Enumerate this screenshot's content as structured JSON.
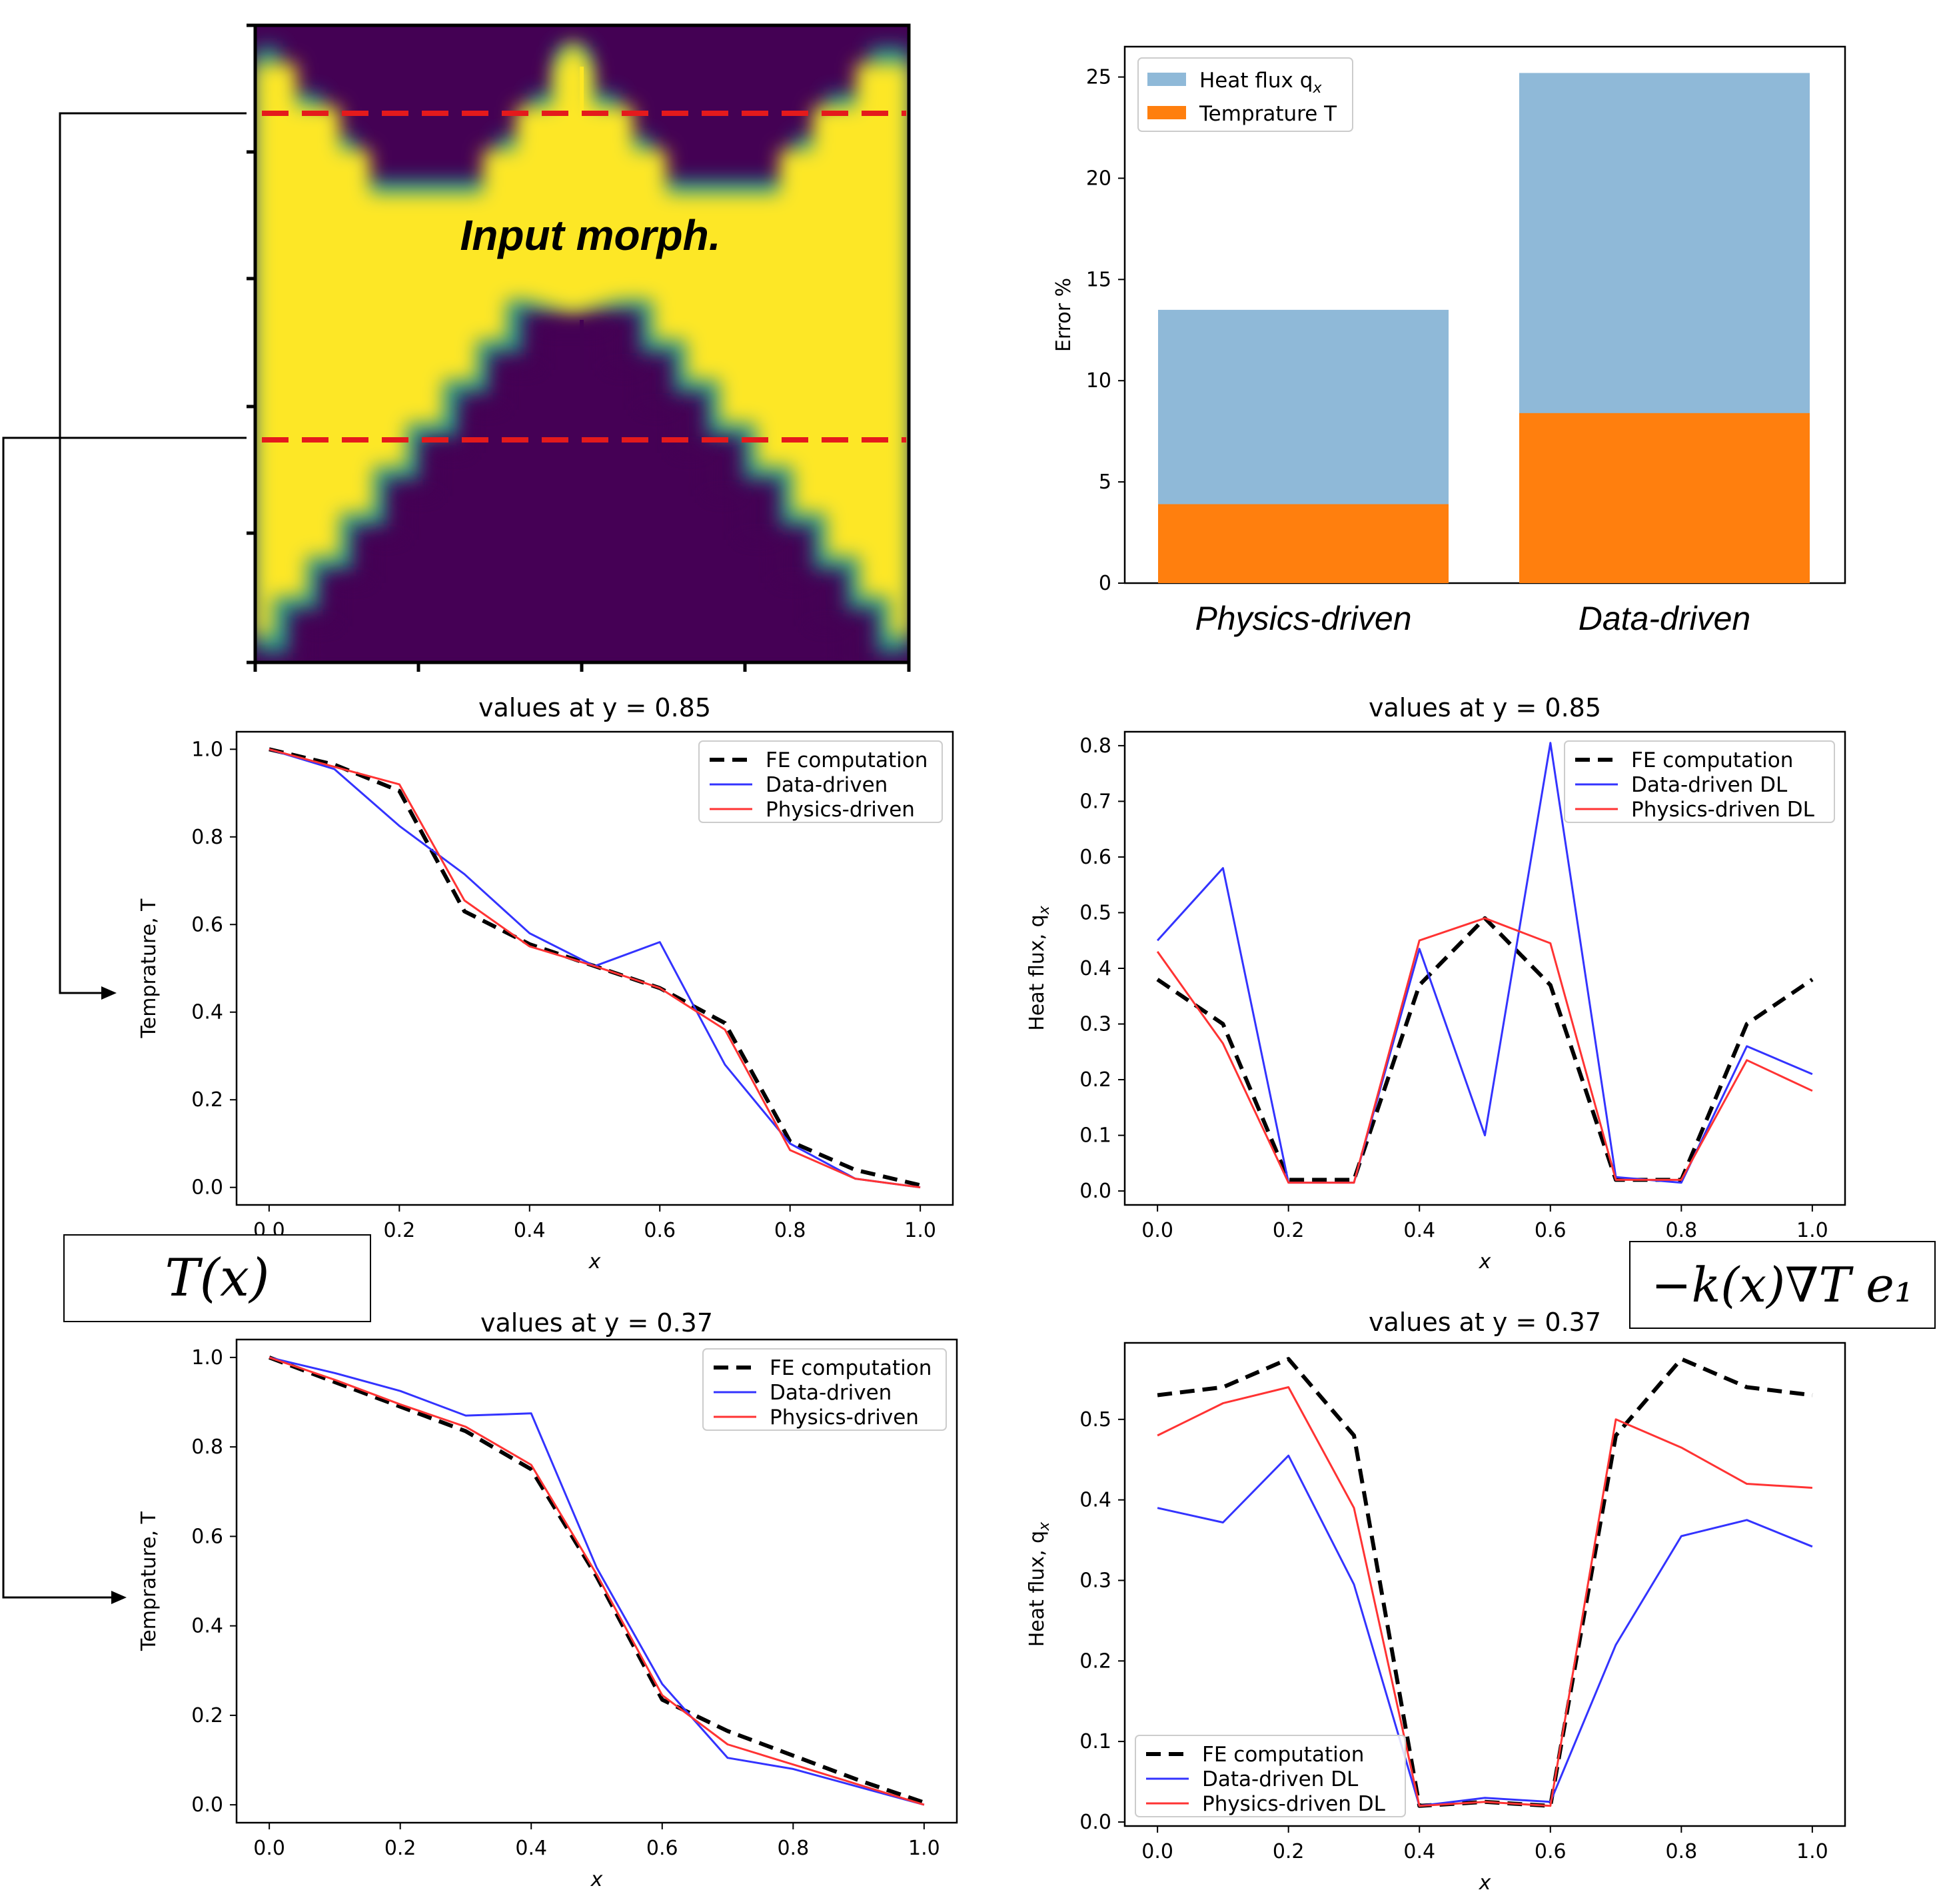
{
  "morph_panel": {
    "label": "Input morph.",
    "colors": {
      "dark": "#440154",
      "teal": "#21918c",
      "yellow": "#fde725",
      "cut": "#e41a1c"
    }
  },
  "formula_boxes": {
    "temperature": "T(x)",
    "flux": "−k(x)∇T e₁"
  },
  "colors": {
    "fe": "#000000",
    "data": "#3333ff",
    "phys": "#ff3333",
    "bar_flux": "#8fb9d8",
    "bar_temp": "#ff7f0e"
  },
  "chart_data": [
    {
      "id": "error-bar",
      "type": "bar",
      "title": "",
      "ylabel": "Error %",
      "ylim": [
        0,
        26.5
      ],
      "yticks": [
        0,
        5,
        10,
        15,
        20,
        25
      ],
      "categories": [
        "Physics-driven",
        "Data-driven"
      ],
      "series": [
        {
          "name": "Heat flux q",
          "sub": "x",
          "values": [
            13.5,
            25.2
          ]
        },
        {
          "name": "Temprature T",
          "values": [
            3.9,
            8.4
          ]
        }
      ]
    },
    {
      "id": "temp-085",
      "type": "line",
      "title": "values at y = 0.85",
      "xlabel": "x",
      "ylabel": "Temprature, T",
      "xlim": [
        -0.05,
        1.05
      ],
      "ylim": [
        -0.04,
        1.04
      ],
      "xticks": [
        "0.0",
        "0.2",
        "0.4",
        "0.6",
        "0.8",
        "1.0"
      ],
      "yticks": [
        "0.0",
        "0.2",
        "0.4",
        "0.6",
        "0.8",
        "1.0"
      ],
      "x": [
        0,
        0.1,
        0.2,
        0.3,
        0.4,
        0.5,
        0.6,
        0.7,
        0.8,
        0.9,
        1.0
      ],
      "series": [
        {
          "name": "FE computation",
          "values": [
            1.0,
            0.965,
            0.905,
            0.63,
            0.555,
            0.505,
            0.455,
            0.375,
            0.105,
            0.04,
            0.005
          ]
        },
        {
          "name": "Data-driven",
          "values": [
            1.0,
            0.955,
            0.825,
            0.715,
            0.58,
            0.505,
            0.56,
            0.28,
            0.1,
            0.02,
            0.0
          ]
        },
        {
          "name": "Physics-driven",
          "values": [
            1.0,
            0.96,
            0.92,
            0.655,
            0.55,
            0.505,
            0.455,
            0.36,
            0.085,
            0.02,
            0.0
          ]
        }
      ]
    },
    {
      "id": "flux-085",
      "type": "line",
      "title": "values at y = 0.85",
      "xlabel": "x",
      "ylabel": "Heat flux, q",
      "ylabel_sub": "x",
      "xlim": [
        -0.05,
        1.05
      ],
      "ylim": [
        -0.025,
        0.825
      ],
      "xticks": [
        "0.0",
        "0.2",
        "0.4",
        "0.6",
        "0.8",
        "1.0"
      ],
      "yticks": [
        "0.0",
        "0.1",
        "0.2",
        "0.3",
        "0.4",
        "0.5",
        "0.6",
        "0.7",
        "0.8"
      ],
      "x": [
        0,
        0.1,
        0.2,
        0.3,
        0.4,
        0.5,
        0.6,
        0.7,
        0.8,
        0.9,
        1.0
      ],
      "series": [
        {
          "name": "FE computation",
          "values": [
            0.38,
            0.3,
            0.02,
            0.02,
            0.37,
            0.49,
            0.37,
            0.02,
            0.02,
            0.3,
            0.38
          ]
        },
        {
          "name": "Data-driven DL",
          "values": [
            0.45,
            0.58,
            0.015,
            0.015,
            0.435,
            0.1,
            0.805,
            0.025,
            0.015,
            0.26,
            0.21
          ]
        },
        {
          "name": "Physics-driven DL",
          "values": [
            0.43,
            0.265,
            0.015,
            0.015,
            0.45,
            0.49,
            0.445,
            0.02,
            0.02,
            0.235,
            0.18
          ]
        }
      ]
    },
    {
      "id": "temp-037",
      "type": "line",
      "title": "values at y = 0.37",
      "xlabel": "x",
      "ylabel": "Temprature, T",
      "xlim": [
        -0.05,
        1.05
      ],
      "ylim": [
        -0.04,
        1.04
      ],
      "xticks": [
        "0.0",
        "0.2",
        "0.4",
        "0.6",
        "0.8",
        "1.0"
      ],
      "yticks": [
        "0.0",
        "0.2",
        "0.4",
        "0.6",
        "0.8",
        "1.0"
      ],
      "x": [
        0,
        0.1,
        0.2,
        0.3,
        0.4,
        0.5,
        0.6,
        0.7,
        0.8,
        0.9,
        1.0
      ],
      "series": [
        {
          "name": "FE computation",
          "values": [
            1.0,
            0.945,
            0.89,
            0.835,
            0.75,
            0.51,
            0.235,
            0.165,
            0.11,
            0.055,
            0.005
          ]
        },
        {
          "name": "Data-driven",
          "values": [
            1.0,
            0.965,
            0.925,
            0.87,
            0.875,
            0.53,
            0.27,
            0.105,
            0.08,
            0.04,
            0.0
          ]
        },
        {
          "name": "Physics-driven",
          "values": [
            1.0,
            0.95,
            0.895,
            0.845,
            0.76,
            0.515,
            0.245,
            0.135,
            0.09,
            0.045,
            0.0
          ]
        }
      ]
    },
    {
      "id": "flux-037",
      "type": "line",
      "title": "values at y = 0.37",
      "xlabel": "x",
      "ylabel": "Heat flux, q",
      "ylabel_sub": "x",
      "xlim": [
        -0.05,
        1.05
      ],
      "ylim": [
        -0.005,
        0.595
      ],
      "xticks": [
        "0.0",
        "0.2",
        "0.4",
        "0.6",
        "0.8",
        "1.0"
      ],
      "yticks": [
        "0.0",
        "0.1",
        "0.2",
        "0.3",
        "0.4",
        "0.5"
      ],
      "x": [
        0,
        0.1,
        0.2,
        0.3,
        0.4,
        0.5,
        0.6,
        0.7,
        0.8,
        0.9,
        1.0
      ],
      "series": [
        {
          "name": "FE computation",
          "values": [
            0.53,
            0.54,
            0.575,
            0.48,
            0.02,
            0.025,
            0.02,
            0.48,
            0.575,
            0.54,
            0.53
          ]
        },
        {
          "name": "Data-driven DL",
          "values": [
            0.39,
            0.372,
            0.455,
            0.295,
            0.02,
            0.03,
            0.025,
            0.22,
            0.355,
            0.375,
            0.342
          ]
        },
        {
          "name": "Physics-driven DL",
          "values": [
            0.48,
            0.52,
            0.54,
            0.39,
            0.02,
            0.025,
            0.02,
            0.5,
            0.465,
            0.42,
            0.415
          ]
        }
      ]
    }
  ]
}
